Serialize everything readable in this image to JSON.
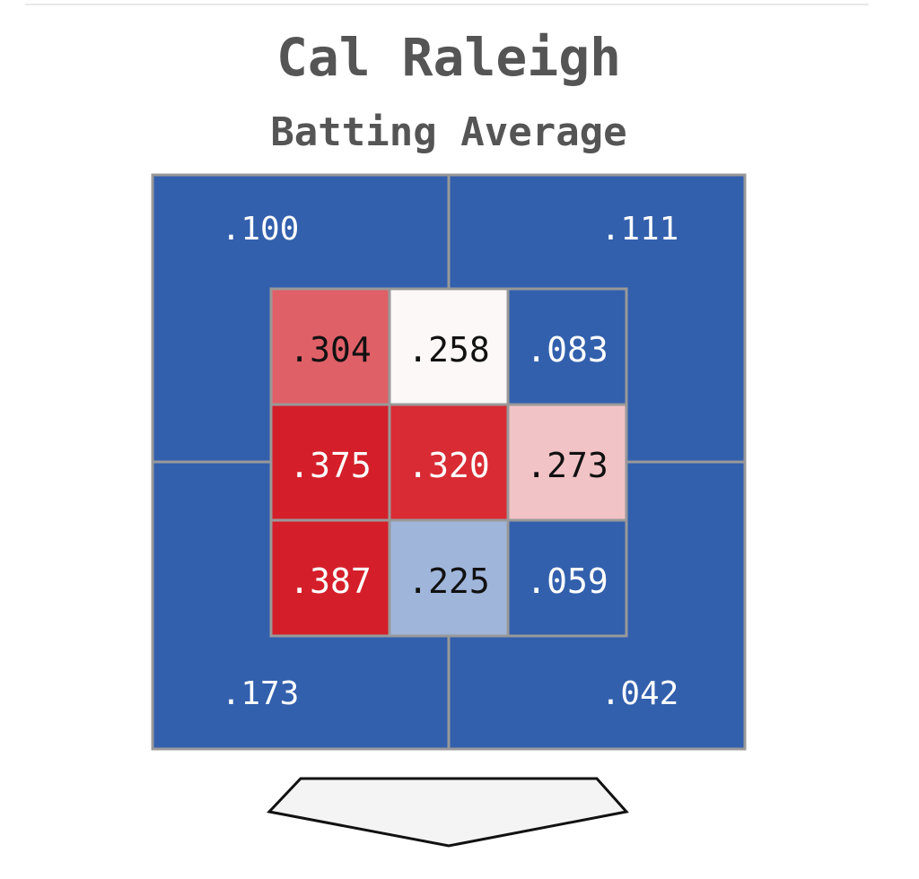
{
  "title": "Cal Raleigh",
  "subtitle": "Batting Average",
  "outer_zones": [
    {
      "label": ".100",
      "color": "#3360ad"
    },
    {
      "label": ".111",
      "color": "#3360ad"
    },
    {
      "label": ".173",
      "color": "#3360ad"
    },
    {
      "label": ".042",
      "color": "#3360ad"
    }
  ],
  "inner_zones": [
    [
      {
        "label": ".304",
        "color": "#e06068",
        "text_color": "#111111"
      },
      {
        "label": ".258",
        "color": "#fdf8f8",
        "text_color": "#111111"
      },
      {
        "label": ".083",
        "color": "#3360ad",
        "text_color": "#ffffff"
      }
    ],
    [
      {
        "label": ".375",
        "color": "#d41f2a",
        "text_color": "#ffffff"
      },
      {
        "label": ".320",
        "color": "#d92b34",
        "text_color": "#ffffff"
      },
      {
        "label": ".273",
        "color": "#f2c3c6",
        "text_color": "#111111"
      }
    ],
    [
      {
        "label": ".387",
        "color": "#d41f2a",
        "text_color": "#ffffff"
      },
      {
        "label": ".225",
        "color": "#9fb5da",
        "text_color": "#111111"
      },
      {
        "label": ".059",
        "color": "#3360ad",
        "text_color": "#ffffff"
      }
    ]
  ]
}
